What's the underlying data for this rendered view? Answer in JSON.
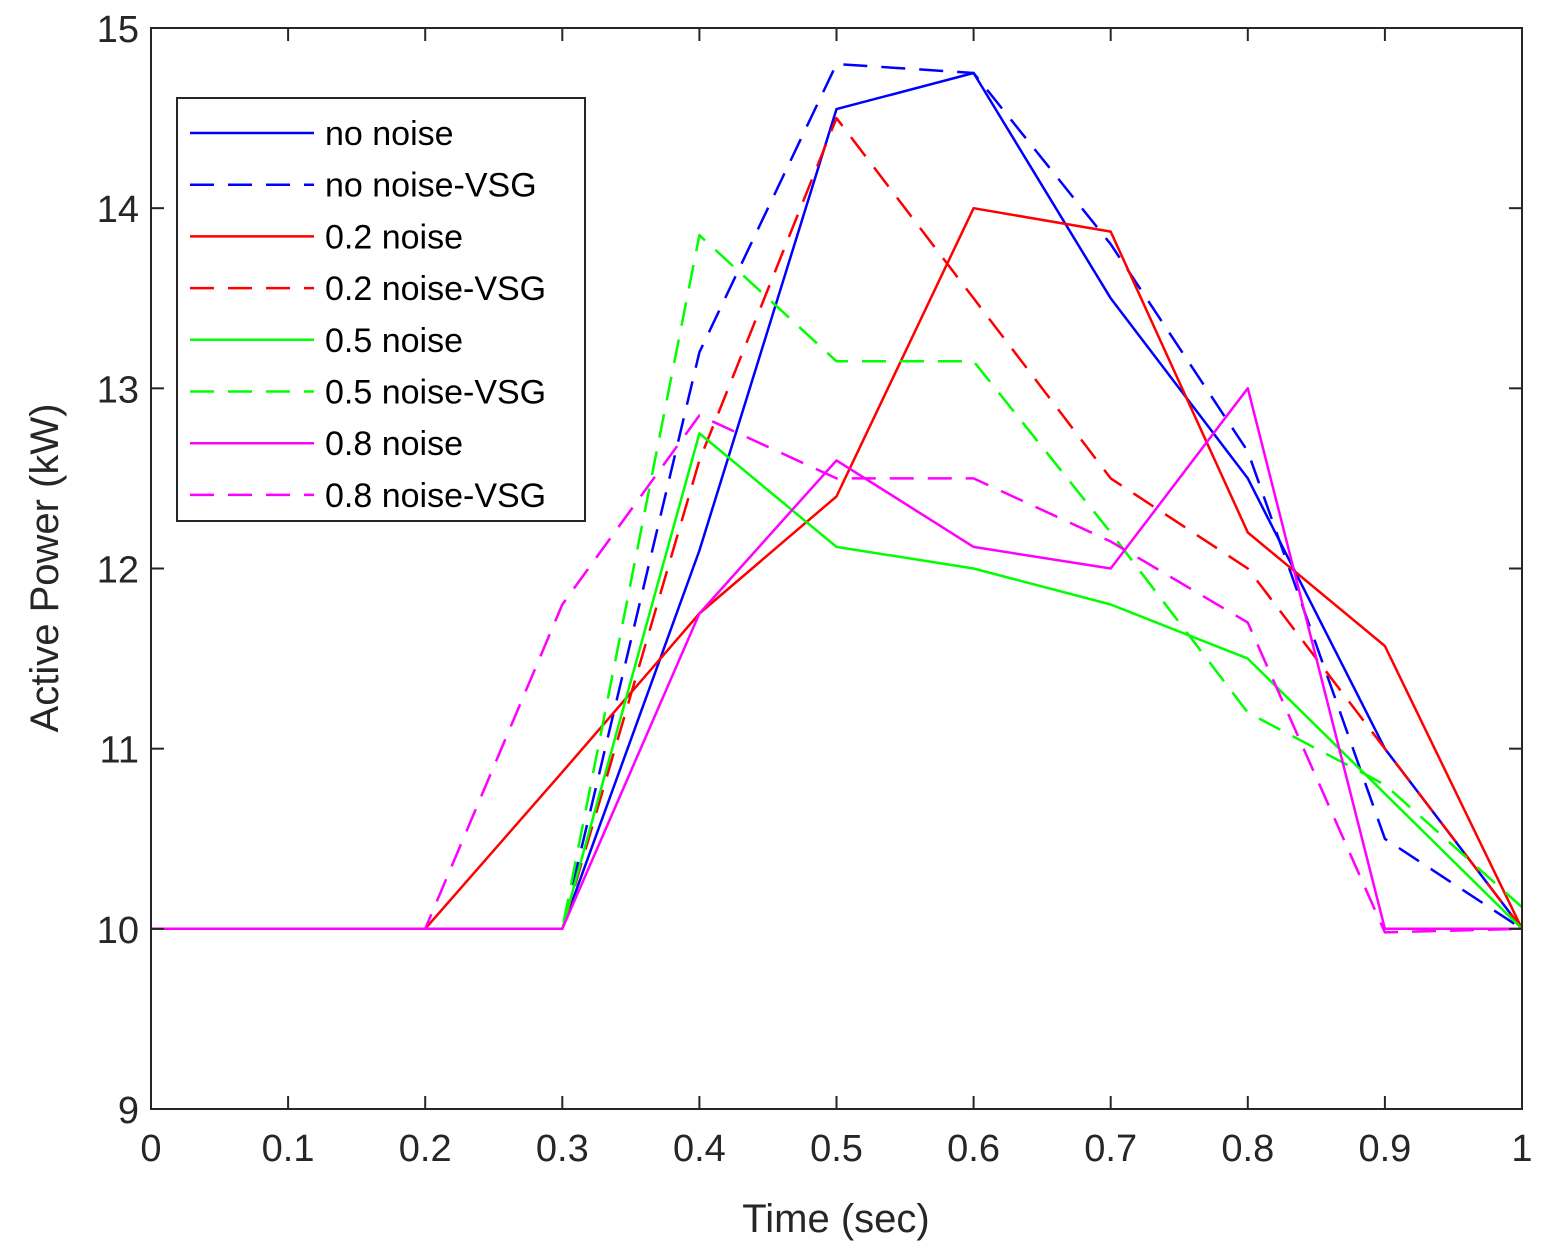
{
  "chart_data": {
    "type": "line",
    "title": "",
    "xlabel": "Time (sec)",
    "ylabel": "Active Power (kW)",
    "xlim": [
      0,
      1
    ],
    "ylim": [
      9,
      15
    ],
    "grid": false,
    "legend_position": "top-left",
    "xticks": [
      0,
      0.1,
      0.2,
      0.3,
      0.4,
      0.5,
      0.6,
      0.7,
      0.8,
      0.9,
      1
    ],
    "xtick_labels": [
      "0",
      "0.1",
      "0.2",
      "0.3",
      "0.4",
      "0.5",
      "0.6",
      "0.7",
      "0.8",
      "0.9",
      "1"
    ],
    "yticks": [
      9,
      10,
      11,
      12,
      13,
      14,
      15
    ],
    "ytick_labels": [
      "9",
      "10",
      "11",
      "12",
      "13",
      "14",
      "15"
    ],
    "x": [
      0,
      0.1,
      0.2,
      0.3,
      0.4,
      0.5,
      0.6,
      0.7,
      0.8,
      0.9,
      1
    ],
    "series": [
      {
        "name": "no noise",
        "color": "#0000ff",
        "dash": "solid",
        "values": [
          10,
          10,
          10,
          10,
          12.1,
          14.55,
          14.75,
          13.5,
          12.5,
          11.0,
          10.0
        ]
      },
      {
        "name": "no noise-VSG",
        "color": "#0000ff",
        "dash": "dashed",
        "values": [
          10,
          10,
          10,
          10,
          13.2,
          14.8,
          14.75,
          13.8,
          12.65,
          10.5,
          10.0
        ]
      },
      {
        "name": "0.2 noise",
        "color": "#ff0000",
        "dash": "solid",
        "values": [
          10,
          10,
          10,
          10.87,
          11.75,
          12.4,
          14.0,
          13.87,
          12.2,
          11.57,
          10.0
        ]
      },
      {
        "name": "0.2 noise-VSG",
        "color": "#ff0000",
        "dash": "dashed",
        "values": [
          10,
          10,
          10,
          10,
          12.6,
          14.5,
          13.5,
          12.5,
          12.0,
          11.0,
          10.0
        ]
      },
      {
        "name": "0.5 noise",
        "color": "#00ff00",
        "dash": "solid",
        "values": [
          10,
          10,
          10,
          10,
          12.75,
          12.12,
          12.0,
          11.8,
          11.5,
          10.75,
          10.0
        ]
      },
      {
        "name": "0.5 noise-VSG",
        "color": "#00ff00",
        "dash": "dashed",
        "values": [
          10,
          10,
          10,
          10,
          13.85,
          13.15,
          13.15,
          12.2,
          11.2,
          10.8,
          10.12
        ]
      },
      {
        "name": "0.8 noise",
        "color": "#ff00ff",
        "dash": "solid",
        "values": [
          10,
          10,
          10,
          10,
          11.75,
          12.6,
          12.12,
          12.0,
          13.0,
          10.0,
          10.0
        ]
      },
      {
        "name": "0.8 noise-VSG",
        "color": "#ff00ff",
        "dash": "dashed",
        "values": [
          10,
          10,
          10,
          11.8,
          12.85,
          12.5,
          12.5,
          12.15,
          11.7,
          9.98,
          10.0
        ]
      }
    ]
  }
}
